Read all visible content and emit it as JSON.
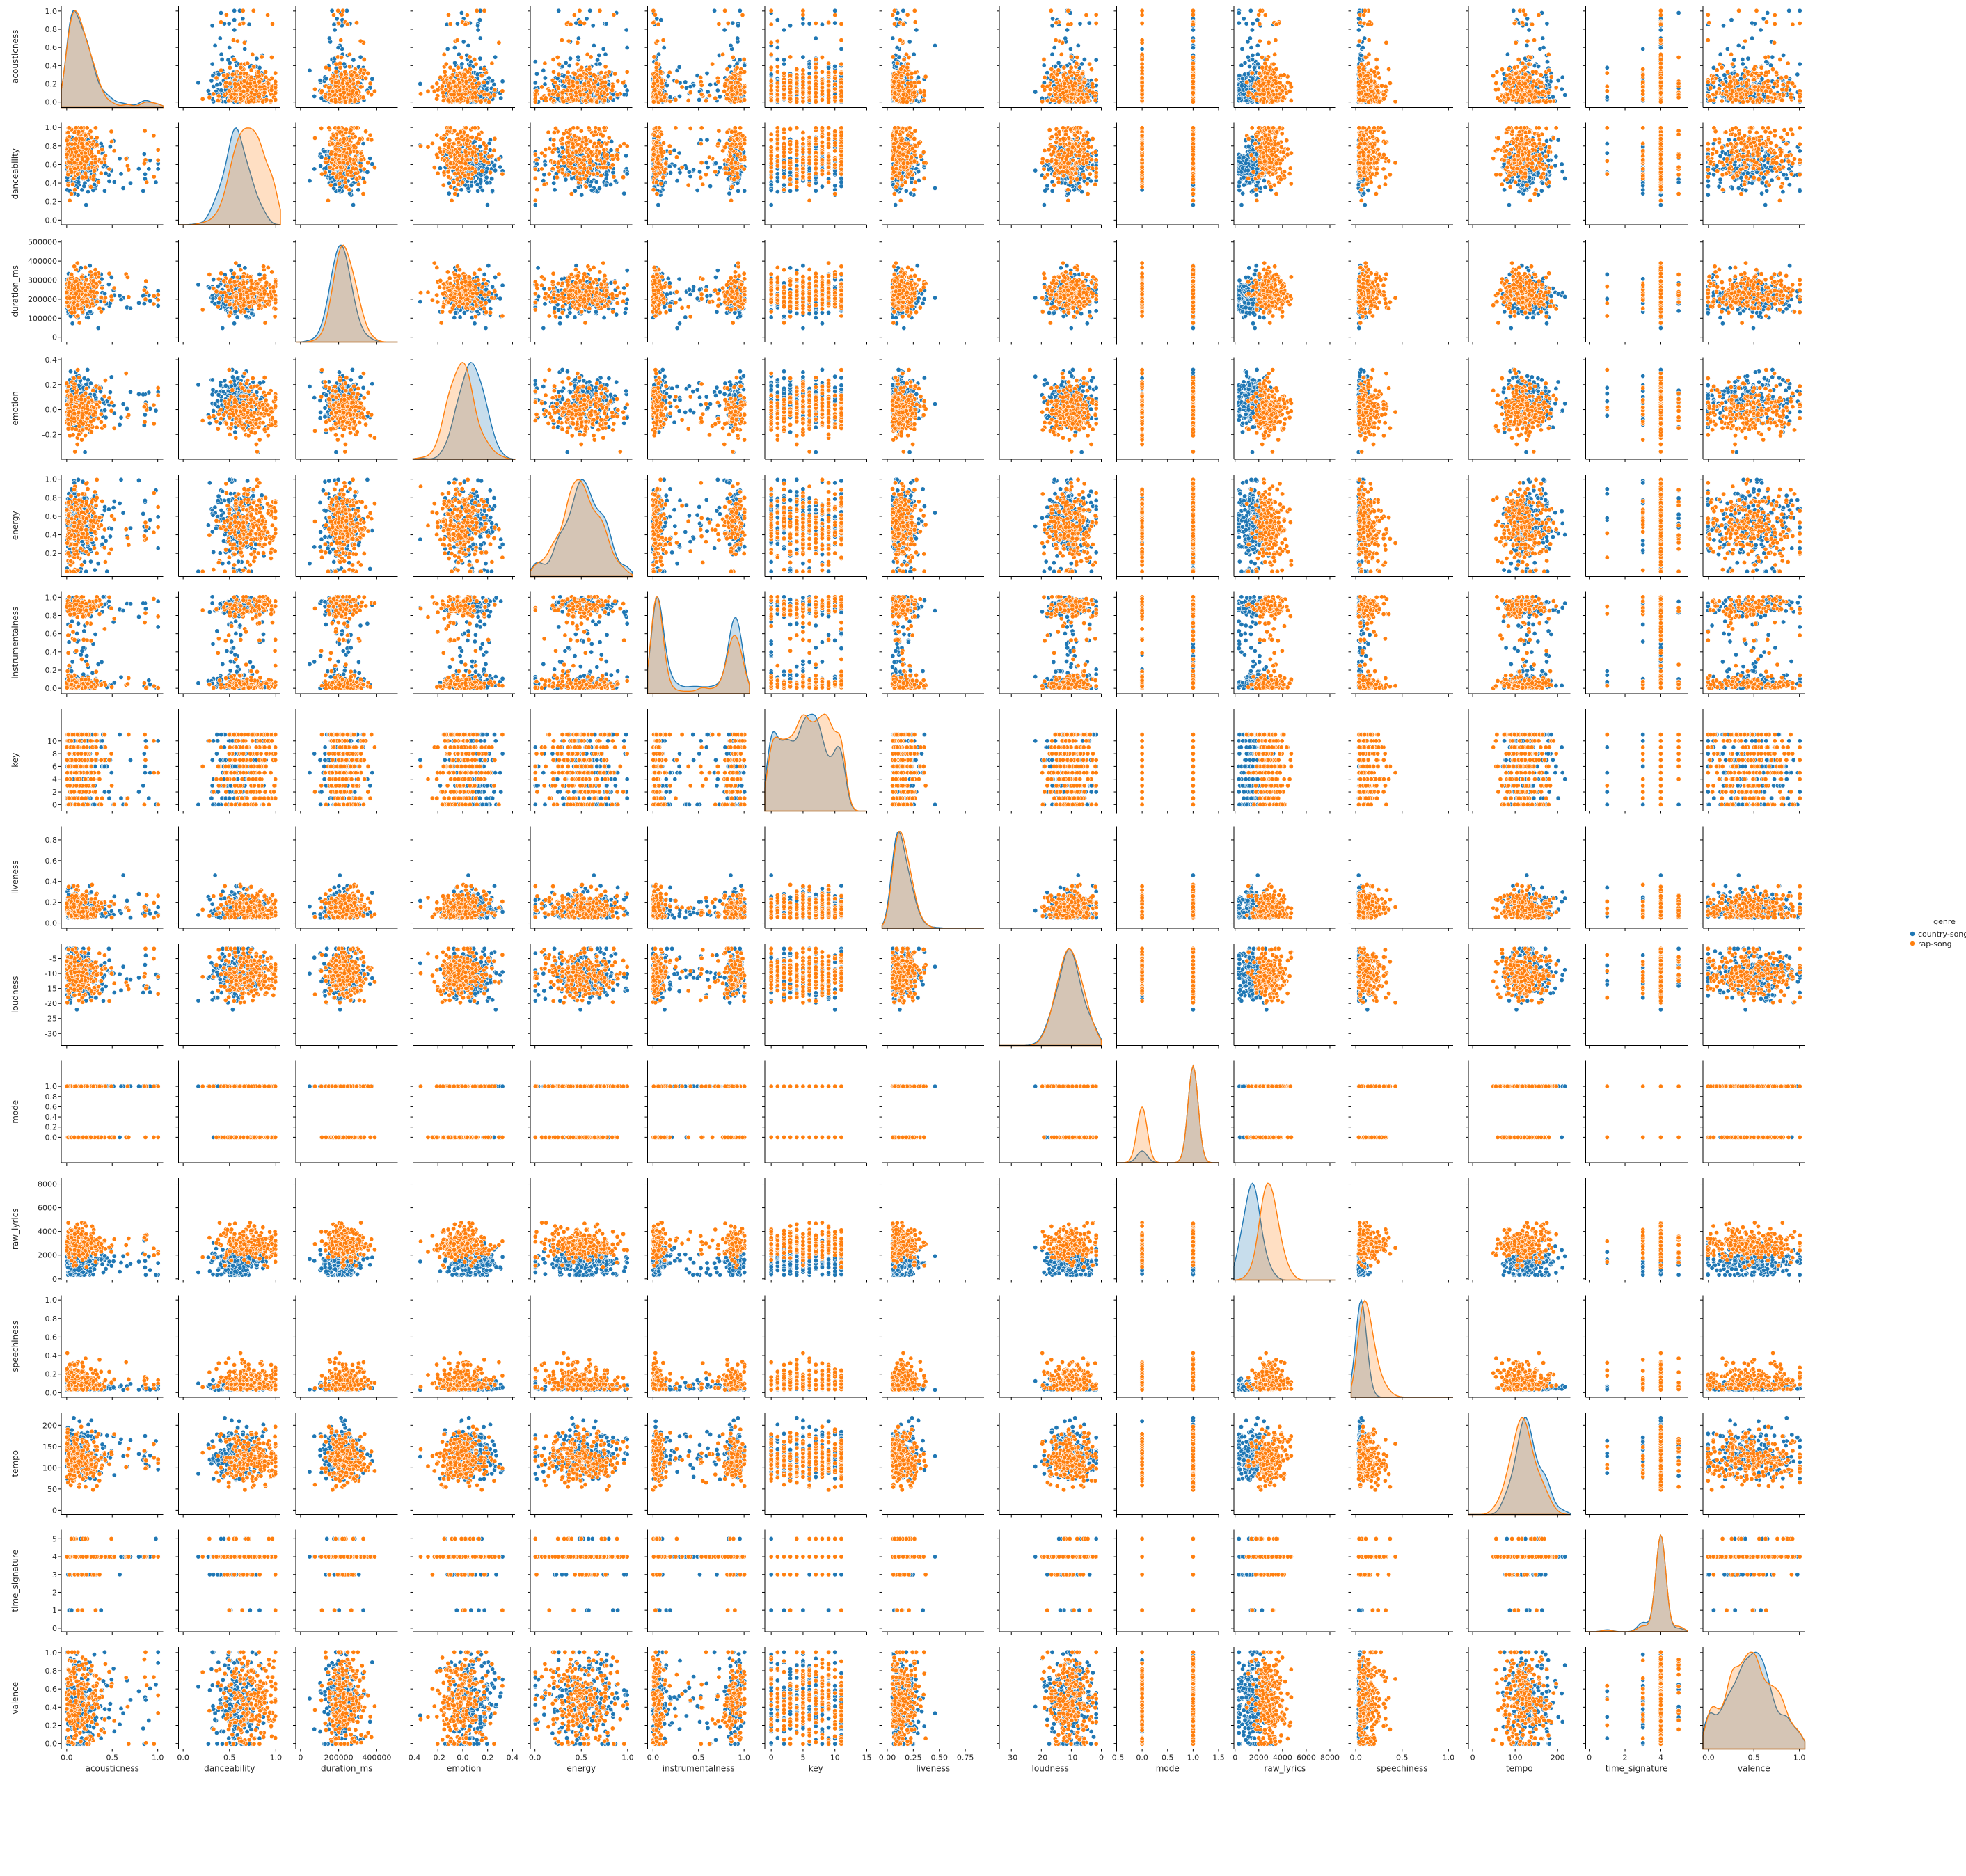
{
  "chart_data": {
    "type": "scatter",
    "subtype": "pairplot",
    "variables": [
      "acousticness",
      "danceability",
      "duration_ms",
      "emotion",
      "energy",
      "instrumentalness",
      "key",
      "liveness",
      "loudness",
      "mode",
      "raw_lyrics",
      "speechiness",
      "tempo",
      "time_signature",
      "valence"
    ],
    "ranges": {
      "acousticness": [
        -0.06,
        1.06
      ],
      "danceability": [
        -0.05,
        1.05
      ],
      "duration_ms": [
        -25000,
        510000
      ],
      "emotion": [
        -0.4,
        0.42
      ],
      "energy": [
        -0.05,
        1.05
      ],
      "instrumentalness": [
        -0.06,
        1.06
      ],
      "key": [
        -1,
        15
      ],
      "liveness": [
        -0.05,
        0.93
      ],
      "loudness": [
        -34,
        0
      ],
      "mode": [
        -0.5,
        1.5
      ],
      "raw_lyrics": [
        -100,
        8500
      ],
      "speechiness": [
        -0.05,
        1.05
      ],
      "tempo": [
        -10,
        230
      ],
      "time_signature": [
        -0.2,
        5.5
      ],
      "valence": [
        -0.06,
        1.06
      ]
    },
    "ticks": {
      "acousticness": [
        0.0,
        0.5,
        1.0
      ],
      "danceability": [
        0.0,
        0.5,
        1.0
      ],
      "duration_ms": [
        0,
        200000,
        400000
      ],
      "emotion": [
        -0.4,
        -0.2,
        0.0,
        0.2,
        0.4
      ],
      "energy": [
        0.0,
        0.5,
        1.0
      ],
      "instrumentalness": [
        0.0,
        0.5,
        1.0
      ],
      "key": [
        0,
        5,
        10,
        15
      ],
      "liveness": [
        0.0,
        0.25,
        0.5,
        0.75
      ],
      "loudness": [
        -30,
        -20,
        -10,
        0
      ],
      "mode": [
        -0.5,
        0.0,
        0.5,
        1.0,
        1.5
      ],
      "raw_lyrics": [
        0,
        2000,
        4000,
        6000,
        8000
      ],
      "speechiness": [
        0.0,
        0.5,
        1.0
      ],
      "tempo": [
        0,
        100,
        200
      ],
      "time_signature": [
        0,
        2,
        4
      ],
      "valence": [
        0.0,
        0.5,
        1.0
      ]
    },
    "yticks": {
      "acousticness": [
        "0.0",
        "0.2",
        "0.4",
        "0.6",
        "0.8",
        "1.0"
      ],
      "danceability": [
        "0.0",
        "0.2",
        "0.4",
        "0.6",
        "0.8",
        "1.0"
      ],
      "duration_ms": [
        "0",
        "100000",
        "200000",
        "300000",
        "400000",
        "500000"
      ],
      "emotion": [
        "-0.2",
        "0.0",
        "0.2",
        "0.4"
      ],
      "energy": [
        "0.2",
        "0.4",
        "0.6",
        "0.8",
        "1.0"
      ],
      "instrumentalness": [
        "0.0",
        "0.2",
        "0.4",
        "0.6",
        "0.8",
        "1.0"
      ],
      "key": [
        "0",
        "2",
        "4",
        "6",
        "8",
        "10"
      ],
      "liveness": [
        "0.0",
        "0.2",
        "0.4",
        "0.6",
        "0.8"
      ],
      "loudness": [
        "-30",
        "-25",
        "-20",
        "-15",
        "-10",
        "-5"
      ],
      "mode": [
        "0.0",
        "0.2",
        "0.4",
        "0.6",
        "0.8",
        "1.0"
      ],
      "raw_lyrics": [
        "0",
        "2000",
        "4000",
        "6000",
        "8000"
      ],
      "speechiness": [
        "0.0",
        "0.2",
        "0.4",
        "0.6",
        "0.8",
        "1.0"
      ],
      "tempo": [
        "0",
        "50",
        "100",
        "150",
        "200"
      ],
      "time_signature": [
        "0",
        "1",
        "2",
        "3",
        "4",
        "5"
      ],
      "valence": [
        "0.0",
        "0.2",
        "0.4",
        "0.6",
        "0.8",
        "1.0"
      ]
    },
    "xtick_labels": {
      "acousticness": [
        "0.0",
        "0.5",
        "1.0"
      ],
      "danceability": [
        "0.0",
        "0.5",
        "1.0"
      ],
      "duration_ms": [
        "0",
        "200000",
        "400000"
      ],
      "emotion": [
        "-0.4",
        "-0.2",
        "0.0",
        "0.2",
        "0.4"
      ],
      "energy": [
        "0.0",
        "0.5",
        "1.0"
      ],
      "instrumentalness": [
        "0.0",
        "0.5",
        "1.0"
      ],
      "key": [
        "0",
        "5",
        "10",
        "15"
      ],
      "liveness": [
        "0.00",
        "0.25",
        "0.50",
        "0.75"
      ],
      "loudness": [
        "-30",
        "-20",
        "-10",
        "0"
      ],
      "mode": [
        "-0.5",
        "0.0",
        "0.5",
        "1.0",
        "1.5"
      ],
      "raw_lyrics": [
        "0",
        "2000",
        "4000",
        "6000",
        "8000"
      ],
      "speechiness": [
        "0.0",
        "0.5",
        "1.0"
      ],
      "tempo": [
        "0",
        "100",
        "200"
      ],
      "time_signature": [
        "0",
        "2",
        "4"
      ],
      "valence": [
        "0.0",
        "0.5",
        "1.0"
      ]
    },
    "series": [
      {
        "name": "country-songs",
        "color": "#1f77b4",
        "center": {
          "acousticness": 0.2,
          "danceability": 0.58,
          "duration_ms": 215000,
          "emotion": 0.06,
          "energy": 0.52,
          "instrumentalness": 0.6,
          "key": 5.5,
          "liveness": 0.18,
          "loudness": -10,
          "mode": 0.85,
          "raw_lyrics": 1400,
          "speechiness": 0.05,
          "tempo": 130,
          "time_signature": 4,
          "valence": 0.45
        }
      },
      {
        "name": "rap-song",
        "color": "#ff7f0e",
        "center": {
          "acousticness": 0.15,
          "danceability": 0.72,
          "duration_ms": 230000,
          "emotion": 0.0,
          "energy": 0.5,
          "instrumentalness": 0.55,
          "key": 5.2,
          "liveness": 0.17,
          "loudness": -10.5,
          "mode": 0.62,
          "raw_lyrics": 2900,
          "speechiness": 0.15,
          "tempo": 120,
          "time_signature": 4,
          "valence": 0.48
        }
      }
    ],
    "legend": {
      "title": "genre",
      "placement": "center-right",
      "entries": [
        "country-songs",
        "rap-song"
      ]
    },
    "grid": false
  }
}
